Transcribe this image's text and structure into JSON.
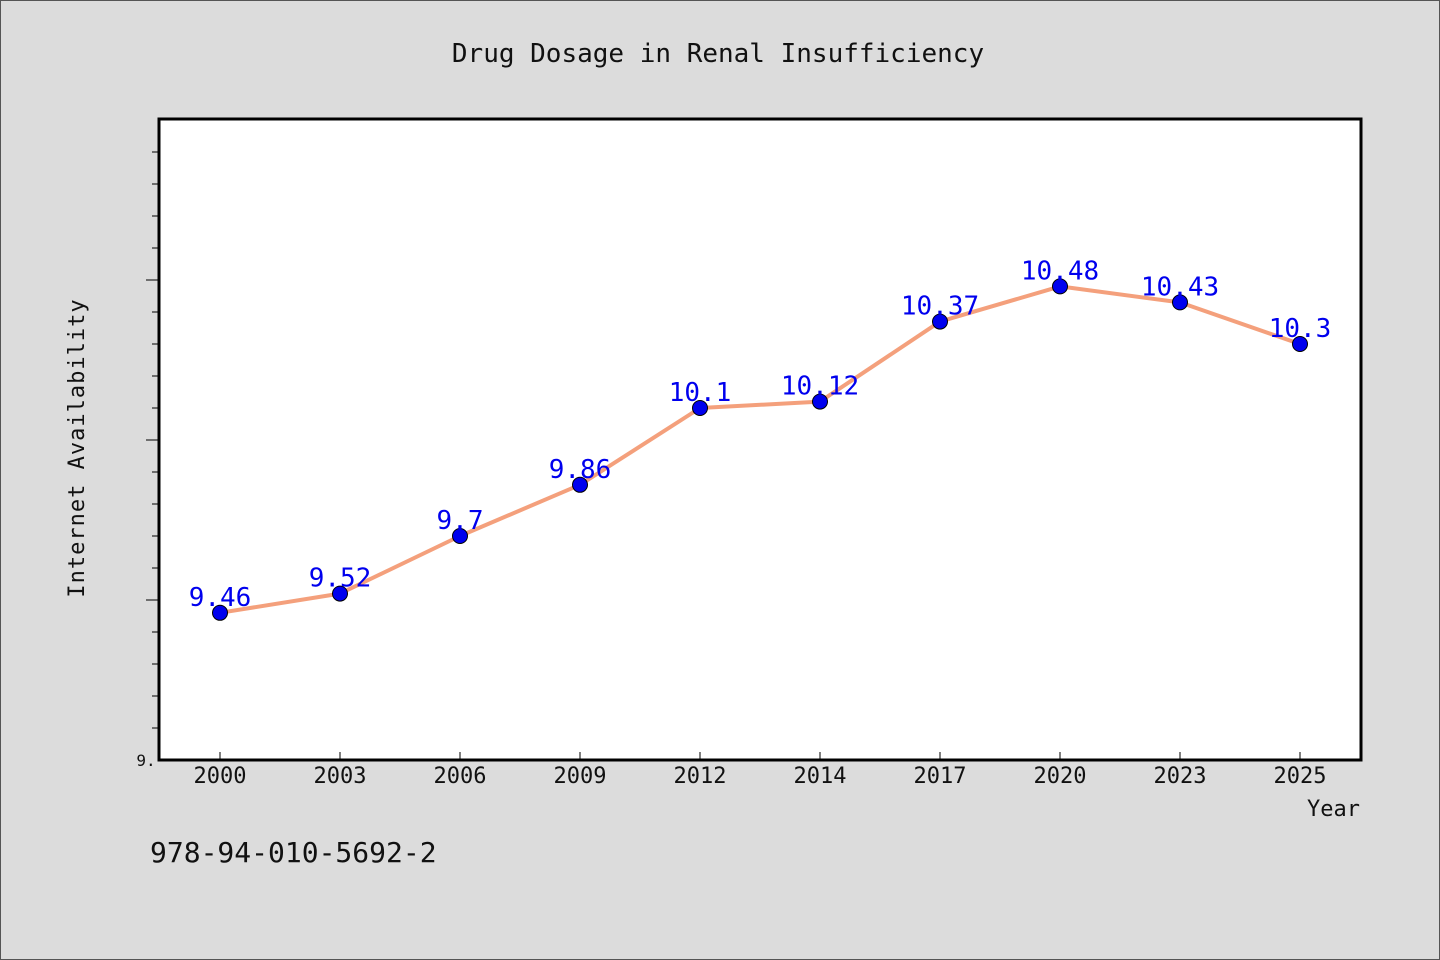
{
  "chart_data": {
    "type": "line",
    "title": "Drug Dosage in Renal Insufficiency",
    "xlabel": "Year",
    "ylabel": "Internet Availability",
    "categories": [
      "2000",
      "2003",
      "2006",
      "2009",
      "2012",
      "2014",
      "2017",
      "2020",
      "2023",
      "2025"
    ],
    "series": [
      {
        "values": [
          9.46,
          9.52,
          9.7,
          9.86,
          10.1,
          10.12,
          10.37,
          10.48,
          10.43,
          10.3
        ]
      }
    ],
    "data_labels": [
      "9.46",
      "9.52",
      "9.7",
      "9.86",
      "10.1",
      "10.12",
      "10.37",
      "10.48",
      "10.43",
      "10.3"
    ],
    "y_tick_labels": [
      "9."
    ],
    "ylim": [
      9.0,
      11.0
    ],
    "grid": false,
    "line_color": "#f4a07c",
    "marker_color": "#0000ee",
    "label_color": "#0000ee",
    "plot_background": "#ffffff",
    "page_background": "#dcdcdc"
  },
  "footer": {
    "isbn": "978-94-010-5692-2"
  }
}
